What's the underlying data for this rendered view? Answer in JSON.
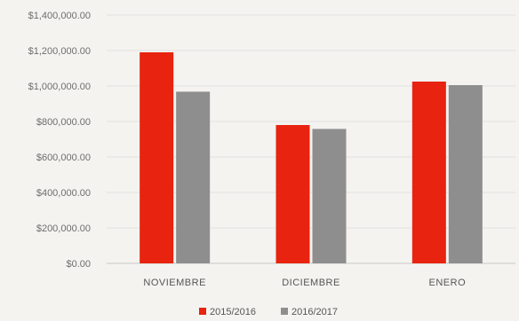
{
  "chart_data": {
    "type": "bar",
    "categories": [
      "NOVIEMBRE",
      "DICIEMBRE",
      "ENERO"
    ],
    "series": [
      {
        "name": "2015/2016",
        "values": [
          1190000,
          780000,
          1025000
        ],
        "color": "#e8230f"
      },
      {
        "name": "2016/2017",
        "values": [
          968000,
          758000,
          1005000
        ],
        "color": "#8e8e8e"
      }
    ],
    "yticks": [
      "$0.00",
      "$200,000.00",
      "$400,000.00",
      "$600,000.00",
      "$800,000.00",
      "$1,000,000.00",
      "$1,200,000.00",
      "$1,400,000.00"
    ],
    "ylim": [
      0,
      1400000
    ],
    "title": "",
    "xlabel": "",
    "ylabel": "",
    "grid": true,
    "legend_position": "bottom"
  }
}
